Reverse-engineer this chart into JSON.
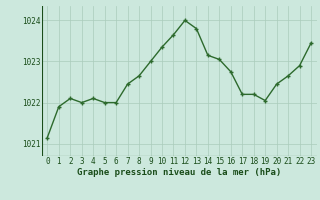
{
  "x": [
    0,
    1,
    2,
    3,
    4,
    5,
    6,
    7,
    8,
    9,
    10,
    11,
    12,
    13,
    14,
    15,
    16,
    17,
    18,
    19,
    20,
    21,
    22,
    23
  ],
  "y": [
    1021.15,
    1021.9,
    1022.1,
    1022.0,
    1022.1,
    1022.0,
    1022.0,
    1022.45,
    1022.65,
    1023.0,
    1023.35,
    1023.65,
    1024.0,
    1023.8,
    1023.15,
    1023.05,
    1022.75,
    1022.2,
    1022.2,
    1022.05,
    1022.45,
    1022.65,
    1022.9,
    1023.45
  ],
  "line_color": "#2d6a2d",
  "marker": "+",
  "marker_size": 3,
  "linewidth": 1.0,
  "markeredgewidth": 1.0,
  "background_color": "#cce8dd",
  "grid_color": "#aaccbb",
  "xlabel": "Graphe pression niveau de la mer (hPa)",
  "xlabel_fontsize": 6.5,
  "xlabel_color": "#1a4d1a",
  "tick_fontsize": 5.5,
  "tick_color": "#1a4d1a",
  "ytick_labels": [
    1021,
    1022,
    1023,
    1024
  ],
  "xtick_labels": [
    0,
    1,
    2,
    3,
    4,
    5,
    6,
    7,
    8,
    9,
    10,
    11,
    12,
    13,
    14,
    15,
    16,
    17,
    18,
    19,
    20,
    21,
    22,
    23
  ],
  "ylim": [
    1020.7,
    1024.35
  ],
  "xlim": [
    -0.5,
    23.5
  ]
}
